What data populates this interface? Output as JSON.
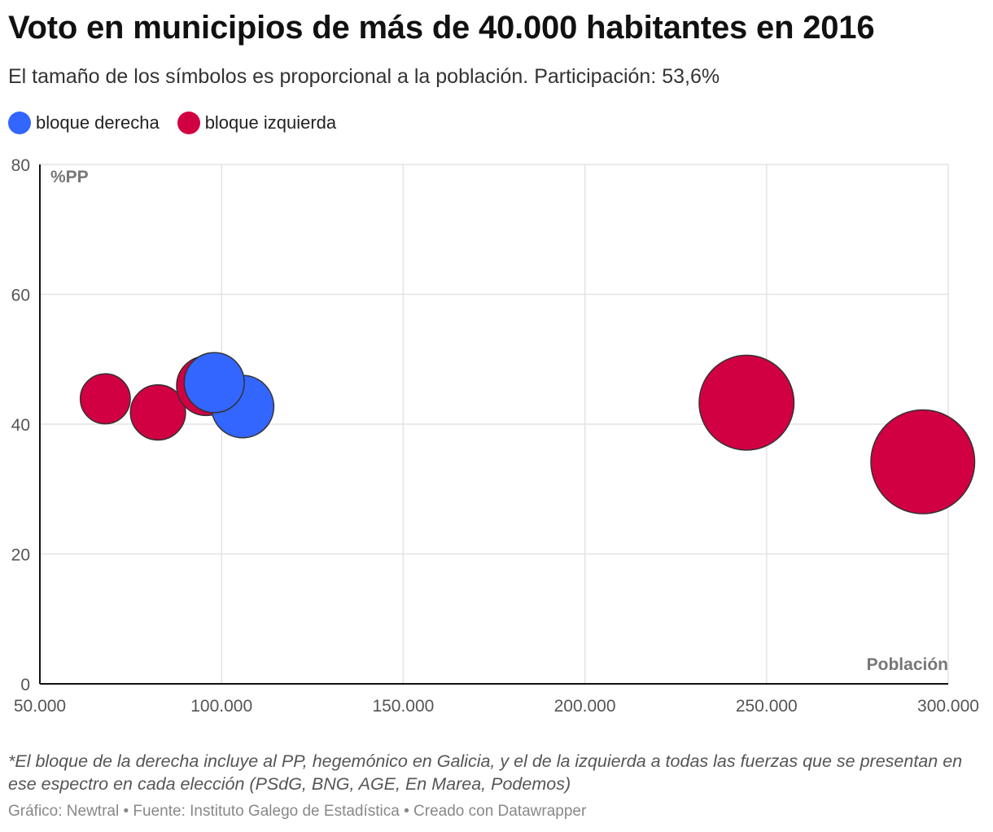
{
  "title": "Voto en municipios de más de 40.000 habitantes en 2016",
  "subtitle": "El tamaño de los símbolos es proporcional a la población. Participación: 53,6%",
  "legend": [
    {
      "label": "bloque derecha",
      "color": "#3366ff"
    },
    {
      "label": "bloque izquierda",
      "color": "#d10042"
    }
  ],
  "note": "*El bloque de la derecha incluye al PP, hegemónico en Galicia, y el de la izquierda a todas las fuerzas que se presentan en ese espectro en cada elección (PSdG, BNG, AGE, En Marea, Podemos)",
  "footer": "Gráfico: Newtral • Fuente: Instituto Galego de Estadística • Creado con Datawrapper",
  "chart_data": {
    "type": "scatter",
    "bubble": true,
    "xlabel": "Población",
    "ylabel": "%PP",
    "xlim": [
      50000,
      300000
    ],
    "ylim": [
      0,
      80
    ],
    "xticks": [
      50000,
      100000,
      150000,
      200000,
      250000,
      300000
    ],
    "xtick_labels": [
      "50.000",
      "100.000",
      "150.000",
      "200.000",
      "250.000",
      "300.000"
    ],
    "yticks": [
      0,
      20,
      40,
      60,
      80
    ],
    "ytick_labels": [
      "0",
      "20",
      "40",
      "60",
      "80"
    ],
    "grid": true,
    "size_encoding": "Población",
    "series": [
      {
        "name": "bloque izquierda",
        "color": "#d10042",
        "points": [
          {
            "x": 68000,
            "y": 43.9
          },
          {
            "x": 82500,
            "y": 41.8
          },
          {
            "x": 95800,
            "y": 45.9
          },
          {
            "x": 244500,
            "y": 43.3
          },
          {
            "x": 293000,
            "y": 34.2
          }
        ]
      },
      {
        "name": "bloque derecha",
        "color": "#3366ff",
        "points": [
          {
            "x": 98000,
            "y": 46.4
          },
          {
            "x": 105800,
            "y": 42.7
          }
        ]
      }
    ]
  }
}
